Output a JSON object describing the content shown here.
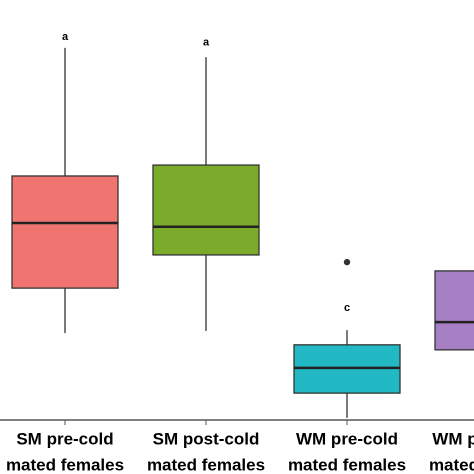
{
  "chart_data": {
    "type": "boxplot",
    "categories": [
      [
        "SM pre-cold",
        "mated females"
      ],
      [
        "SM post-cold",
        "mated females"
      ],
      [
        "WM pre-cold",
        "mated females"
      ],
      [
        "WM post-cold",
        "mated females"
      ]
    ],
    "ylim": [
      0,
      100
    ],
    "boxes": [
      {
        "color": "#f07470",
        "min": 20.7,
        "q1": 31.4,
        "median": 46.9,
        "q3": 58.1,
        "max": 88.6,
        "outliers": []
      },
      {
        "color": "#7aab2a",
        "min": 21.2,
        "q1": 39.3,
        "median": 46.0,
        "q3": 60.7,
        "max": 86.4,
        "outliers": []
      },
      {
        "color": "#22b8c4",
        "min": 0.5,
        "q1": 6.4,
        "median": 12.4,
        "q3": 17.9,
        "max": 21.4,
        "outliers": [
          37.6
        ]
      },
      {
        "color": "#a77fc4",
        "q1": 16.7,
        "median": 23.3,
        "q3": 35.5,
        "outliers": []
      }
    ],
    "annotations": [
      {
        "text": "a",
        "category": 0,
        "y": 91.2
      },
      {
        "text": "a",
        "category": 1,
        "y": 89.8
      },
      {
        "text": "c",
        "category": 2,
        "y": 26.7
      }
    ]
  }
}
